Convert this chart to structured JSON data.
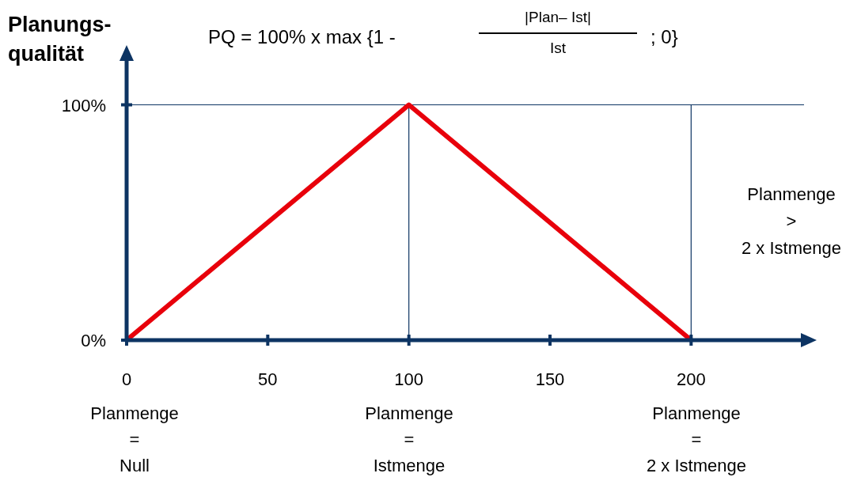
{
  "chart_data": {
    "type": "line",
    "ylabel": "Planungs-\nqualität",
    "x": [
      0,
      100,
      200
    ],
    "series": [
      {
        "color": "#e8000b",
        "values": [
          0,
          100,
          0
        ]
      }
    ],
    "xlim": [
      0,
      240
    ],
    "xticks": [
      0,
      50,
      100,
      150,
      200
    ],
    "ylim": [
      0,
      120
    ],
    "yticks": [
      {
        "value": 0,
        "label": "0%"
      },
      {
        "value": 100,
        "label": "100%"
      }
    ],
    "grid": "y",
    "marker": "none",
    "line_style": "solid",
    "ref_lines": [
      {
        "axis": "x",
        "value": 100,
        "color": "#0d3463"
      },
      {
        "axis": "x",
        "value": 200,
        "color": "#0d3463"
      }
    ],
    "annotations": [
      "PQ = 100% x max {1 -",
      "|Plan– Ist|",
      "Ist",
      "; 0}",
      "Planmenge\n>\n2 x Istmenge",
      "Planmenge\n=\nNull",
      "Planmenge\n=\nIstmenge",
      "Planmenge\n=\n2 x Istmenge"
    ]
  }
}
